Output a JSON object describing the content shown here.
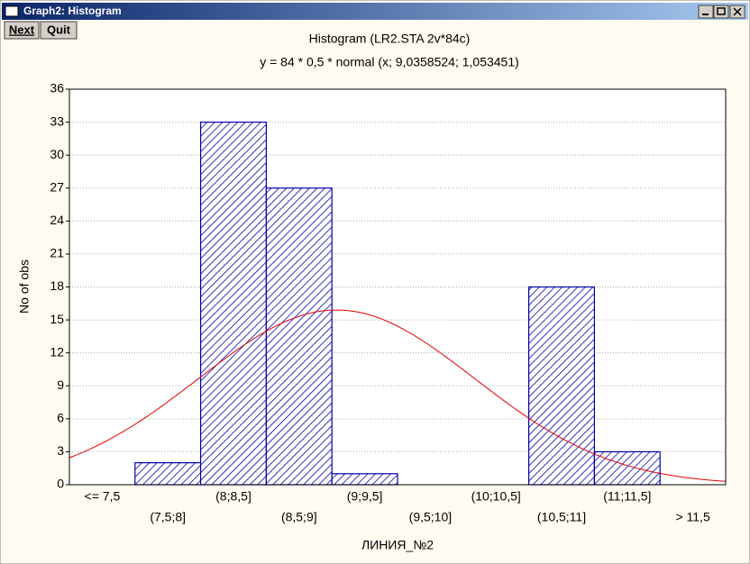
{
  "window": {
    "title": "Graph2: Histogram",
    "buttons": [
      "Next",
      "Quit"
    ]
  },
  "chart_data": {
    "type": "histogram",
    "title": "Histogram (LR2.STA 2v*84c)",
    "subtitle": "y = 84 * 0,5 * normal (x; 9,0358524; 1,053451)",
    "x_label": "ЛИНИЯ_№2",
    "y_label": "No of obs",
    "categories": [
      "<= 7,5",
      "(7,5;8]",
      "(8;8,5]",
      "(8,5;9]",
      "(9;9,5]",
      "(9,5;10]",
      "(10;10,5]",
      "(10,5;11]",
      "(11;11,5]",
      "> 11,5"
    ],
    "values": [
      0,
      2,
      33,
      27,
      1,
      0,
      0,
      18,
      3,
      0
    ],
    "color": "#0000b0",
    "xlim": [
      7,
      12
    ],
    "fit": {
      "n": 84,
      "bin_width": 0.5,
      "mean": 9.0358524,
      "sd": 1.053451,
      "color": "#e00000"
    },
    "ylim": [
      0,
      36
    ],
    "yticks": [
      0,
      3,
      6,
      9,
      12,
      15,
      18,
      21,
      24,
      27,
      30,
      33,
      36
    ],
    "grid": true
  }
}
